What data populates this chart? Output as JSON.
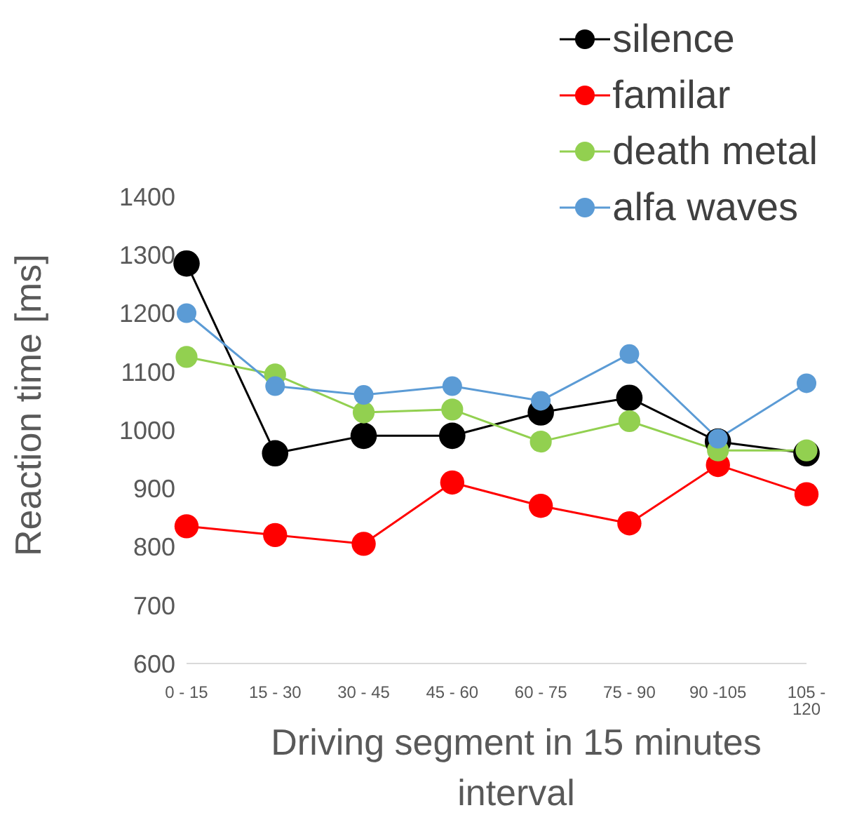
{
  "chart_data": {
    "type": "line",
    "xlabel": "Driving segment in 15 minutes interval",
    "ylabel": "Reaction time [ms]",
    "categories": [
      "0 - 15",
      "15 - 30",
      "30 - 45",
      "45 - 60",
      "60 - 75",
      "75 - 90",
      "90 -105",
      "105 - 120"
    ],
    "series": [
      {
        "name": "silence",
        "color": "#000000",
        "values": [
          1285,
          960,
          990,
          990,
          1030,
          1055,
          980,
          960
        ]
      },
      {
        "name": "familar",
        "color": "#ff0000",
        "values": [
          835,
          820,
          805,
          910,
          870,
          840,
          940,
          890
        ]
      },
      {
        "name": "death metal",
        "color": "#92d050",
        "values": [
          1125,
          1095,
          1030,
          1035,
          980,
          1015,
          965,
          965
        ]
      },
      {
        "name": "alfa waves",
        "color": "#5b9bd5",
        "values": [
          1200,
          1075,
          1060,
          1075,
          1050,
          1130,
          985,
          1080
        ]
      }
    ],
    "ylim": [
      600,
      1400
    ],
    "yticks": [
      600,
      700,
      800,
      900,
      1000,
      1100,
      1200,
      1300,
      1400
    ],
    "legend": "top right",
    "marker": "circle",
    "line_style": "solid"
  }
}
